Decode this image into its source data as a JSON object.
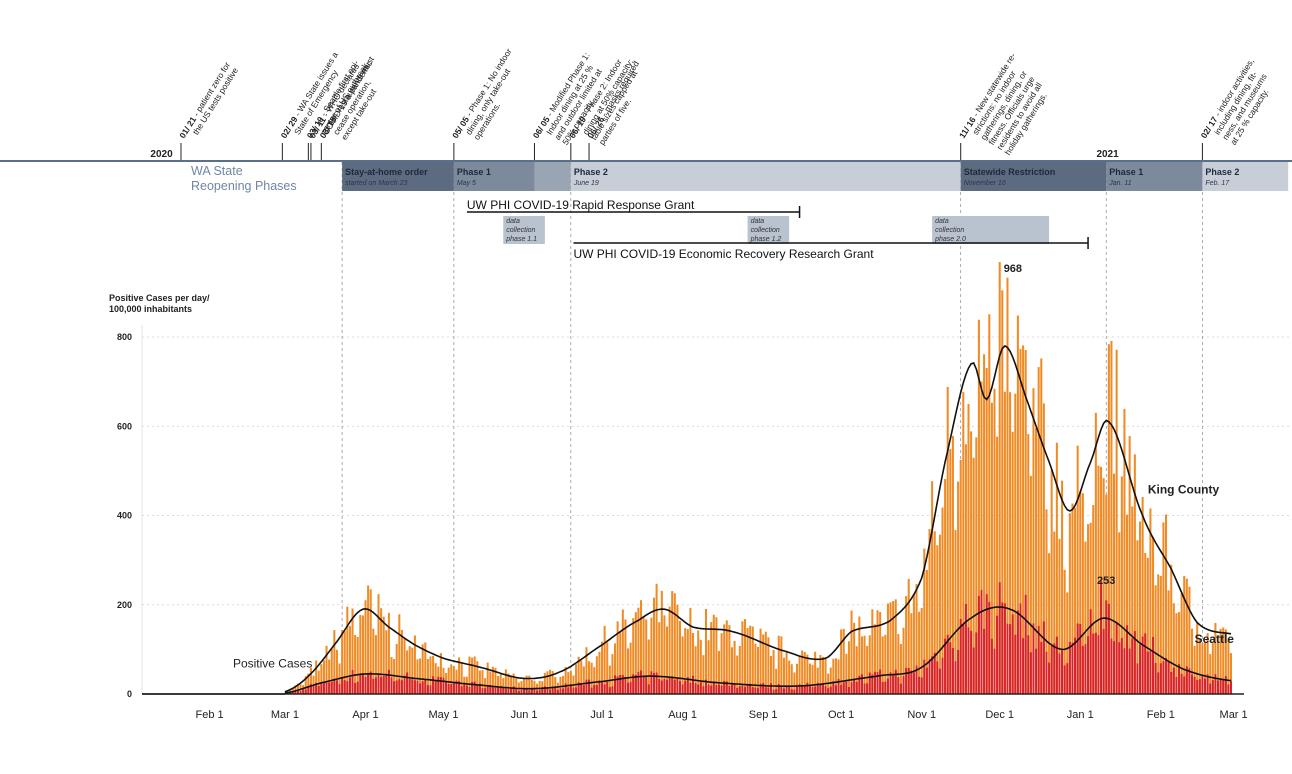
{
  "chart_data": {
    "type": "bar",
    "ylabel_lines": [
      "Positive Cases per day/",
      "100,000 inhabitants"
    ],
    "yticks": [
      "0",
      "200",
      "400",
      "600",
      "800"
    ],
    "ylim": [
      0,
      968
    ],
    "grid": true,
    "xlim": [
      "2020-01-06",
      "2021-03-05"
    ],
    "xticks": [
      {
        "date": "2020-02-01",
        "label": "Feb 1"
      },
      {
        "date": "2020-03-01",
        "label": "Mar 1"
      },
      {
        "date": "2020-04-01",
        "label": "Apr 1"
      },
      {
        "date": "2020-05-01",
        "label": "May 1"
      },
      {
        "date": "2020-06-01",
        "label": "Jun 1"
      },
      {
        "date": "2020-07-01",
        "label": "Jul 1"
      },
      {
        "date": "2020-08-01",
        "label": "Aug 1"
      },
      {
        "date": "2020-09-01",
        "label": "Sep 1"
      },
      {
        "date": "2020-10-01",
        "label": "Oct 1"
      },
      {
        "date": "2020-11-01",
        "label": "Nov 1"
      },
      {
        "date": "2020-12-01",
        "label": "Dec 1"
      },
      {
        "date": "2021-01-01",
        "label": "Jan 1"
      },
      {
        "date": "2021-02-01",
        "label": "Feb 1"
      },
      {
        "date": "2021-03-01",
        "label": "Mar 1"
      }
    ],
    "daily_start": "2020-03-01",
    "daily_end": "2021-02-28",
    "series": [
      {
        "name": "King County",
        "color": "#f08a24",
        "trend": [
          {
            "x": "2020-03-01",
            "y": 5
          },
          {
            "x": "2020-03-10",
            "y": 40
          },
          {
            "x": "2020-03-20",
            "y": 110
          },
          {
            "x": "2020-03-31",
            "y": 190
          },
          {
            "x": "2020-04-10",
            "y": 150
          },
          {
            "x": "2020-04-20",
            "y": 110
          },
          {
            "x": "2020-05-01",
            "y": 80
          },
          {
            "x": "2020-05-15",
            "y": 60
          },
          {
            "x": "2020-06-01",
            "y": 35
          },
          {
            "x": "2020-06-15",
            "y": 50
          },
          {
            "x": "2020-07-01",
            "y": 110
          },
          {
            "x": "2020-07-15",
            "y": 165
          },
          {
            "x": "2020-07-25",
            "y": 190
          },
          {
            "x": "2020-08-05",
            "y": 150
          },
          {
            "x": "2020-08-20",
            "y": 140
          },
          {
            "x": "2020-09-10",
            "y": 95
          },
          {
            "x": "2020-09-25",
            "y": 80
          },
          {
            "x": "2020-10-05",
            "y": 140
          },
          {
            "x": "2020-10-20",
            "y": 165
          },
          {
            "x": "2020-11-01",
            "y": 260
          },
          {
            "x": "2020-11-10",
            "y": 520
          },
          {
            "x": "2020-11-20",
            "y": 740
          },
          {
            "x": "2020-11-26",
            "y": 660
          },
          {
            "x": "2020-12-03",
            "y": 780
          },
          {
            "x": "2020-12-12",
            "y": 650
          },
          {
            "x": "2020-12-20",
            "y": 520
          },
          {
            "x": "2020-12-28",
            "y": 410
          },
          {
            "x": "2021-01-05",
            "y": 520
          },
          {
            "x": "2021-01-12",
            "y": 610
          },
          {
            "x": "2021-01-25",
            "y": 400
          },
          {
            "x": "2021-02-05",
            "y": 280
          },
          {
            "x": "2021-02-15",
            "y": 160
          },
          {
            "x": "2021-02-28",
            "y": 135
          }
        ]
      },
      {
        "name": "Seattle",
        "color": "#d8232a",
        "trend": [
          {
            "x": "2020-03-01",
            "y": 2
          },
          {
            "x": "2020-03-15",
            "y": 25
          },
          {
            "x": "2020-04-01",
            "y": 45
          },
          {
            "x": "2020-04-20",
            "y": 35
          },
          {
            "x": "2020-05-15",
            "y": 20
          },
          {
            "x": "2020-06-05",
            "y": 12
          },
          {
            "x": "2020-07-01",
            "y": 28
          },
          {
            "x": "2020-07-20",
            "y": 40
          },
          {
            "x": "2020-08-15",
            "y": 25
          },
          {
            "x": "2020-09-15",
            "y": 18
          },
          {
            "x": "2020-10-15",
            "y": 40
          },
          {
            "x": "2020-11-01",
            "y": 60
          },
          {
            "x": "2020-11-20",
            "y": 170
          },
          {
            "x": "2020-12-05",
            "y": 190
          },
          {
            "x": "2020-12-25",
            "y": 100
          },
          {
            "x": "2021-01-10",
            "y": 170
          },
          {
            "x": "2021-01-25",
            "y": 110
          },
          {
            "x": "2021-02-10",
            "y": 55
          },
          {
            "x": "2021-02-28",
            "y": 30
          }
        ]
      }
    ],
    "annotations": [
      {
        "label": "968",
        "x": "2020-12-01",
        "y": 968
      },
      {
        "label": "253",
        "x": "2021-01-09",
        "y": 253
      },
      {
        "label": "King County",
        "x": "2021-01-27",
        "y": 440
      },
      {
        "label": "Seattle",
        "x": "2021-02-14",
        "y": 105
      },
      {
        "label": "Positive Cases",
        "x": "2020-02-10",
        "y": 50
      }
    ]
  },
  "timeline": {
    "year_labels": [
      {
        "label": "2020",
        "date": "2020-01-10"
      },
      {
        "label": "2021",
        "date": "2021-01-08"
      }
    ],
    "title_lines": [
      "WA State",
      "Reopening Phases"
    ],
    "phases": [
      {
        "name": "Stay-at-home order",
        "date_text": "started on March 23",
        "start": "2020-03-23",
        "end": "2020-05-05",
        "color": "#5c6b80"
      },
      {
        "name": "Phase 1",
        "date_text": "May 5",
        "start": "2020-05-05",
        "end": "2020-06-05",
        "color": "#7d8a9c"
      },
      {
        "name": "",
        "date_text": "",
        "start": "2020-06-05",
        "end": "2020-06-19",
        "color": "#9aa5b4"
      },
      {
        "name": "Phase 2",
        "date_text": "June 19",
        "start": "2020-06-19",
        "end": "2020-11-16",
        "color": "#c7ced8"
      },
      {
        "name": "Statewide Restriction",
        "date_text": "November 16",
        "start": "2020-11-16",
        "end": "2021-01-11",
        "color": "#5c6b80"
      },
      {
        "name": "Phase 1",
        "date_text": "Jan. 11",
        "start": "2021-01-11",
        "end": "2021-02-17",
        "color": "#7d8a9c"
      },
      {
        "name": "Phase 2",
        "date_text": "Feb. 17",
        "start": "2021-02-17",
        "end": "2021-03-22",
        "color": "#c7ced8"
      }
    ],
    "events": [
      {
        "date": "2020-01-21",
        "date_label": "01/ 21",
        "text": [
          "- patient zero for",
          "the US tests positive"
        ]
      },
      {
        "date": "2020-02-29",
        "date_label": "02/ 29",
        "text": [
          "- WA State issues a",
          "State of Emergency"
        ]
      },
      {
        "date": "2020-03-10",
        "date_label": "03/ 10",
        "text": [
          "- Seattle first epi-",
          "center of US outbreak"
        ]
      },
      {
        "date": "2020-03-11",
        "date_label": "03/ 11",
        "text": [
          "- WHO declares",
          "COVID-19 a pandemic"
        ]
      },
      {
        "date": "2020-03-15",
        "date_label": "03/ 15",
        "text": [
          "- restaurants must",
          "cease operation,",
          "except take-out"
        ]
      },
      {
        "date": "2020-05-05",
        "date_label": "05/ 05",
        "text": [
          "- Phase 1: No indoor",
          "dining, only take-out",
          "operations."
        ]
      },
      {
        "date": "2020-06-05",
        "date_label": "06/ 05",
        "text": [
          "- Modified Phase 1:",
          "Indoor dining at 25 %",
          "and outdoor limited at",
          "50% capacity."
        ]
      },
      {
        "date": "2020-06-19",
        "date_label": "06/ 19",
        "text": [
          "- Phase 2: Indoor",
          "dining at 50% capacity;",
          "table sizes capped at",
          "parties of five."
        ]
      },
      {
        "date": "2020-06-26",
        "date_label": "06/ 26",
        "text": [
          "- masks required"
        ]
      },
      {
        "date": "2020-11-16",
        "date_label": "11/ 16",
        "text": [
          "- New statewide re-",
          "strictions: no indoor",
          "gatherings, dining, or",
          "fitness. Officials urge",
          "residents to avoid all",
          "holiday gatherings."
        ]
      },
      {
        "date": "2021-02-17",
        "date_label": "02/ 17",
        "text": [
          "- indoor activities,",
          "including dining, fit-",
          "ness, and museums",
          "at 25 % capacity."
        ]
      }
    ]
  },
  "grants": [
    {
      "label": "UW PHI COVID-19 Rapid Response Grant",
      "start": "2020-05-10",
      "end": "2020-09-15"
    },
    {
      "label": "UW PHI COVID-19 Economic Recovery Research Grant",
      "start": "2020-06-20",
      "end": "2021-01-04"
    }
  ],
  "data_collection": [
    {
      "lines": [
        "data",
        "collection",
        "phase 1.1"
      ],
      "start": "2020-05-24",
      "end": "2020-06-09"
    },
    {
      "lines": [
        "data",
        "collection",
        "phase 1.2"
      ],
      "start": "2020-08-26",
      "end": "2020-09-11"
    },
    {
      "lines": [
        "data",
        "collection",
        "phase 2.0"
      ],
      "start": "2020-11-05",
      "end": "2020-12-20"
    }
  ]
}
